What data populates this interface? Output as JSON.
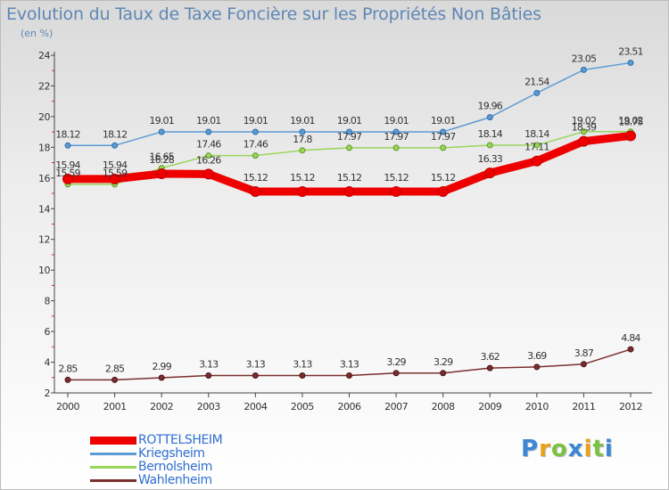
{
  "title": "Evolution du Taux de Taxe Foncière sur les Propriétés Non Bâties",
  "unit": "(en %)",
  "logo": {
    "text": "Proxiti",
    "letter_colors": [
      "#3a87d6",
      "#e8a21c",
      "#7cc242",
      "#3a87d6",
      "#e8a21c",
      "#7cc242",
      "#3a87d6"
    ]
  },
  "chart_data": {
    "type": "line",
    "title": "Evolution du Taux de Taxe Foncière sur les Propriétés Non Bâties",
    "xlabel": "",
    "ylabel": "(en %)",
    "categories": [
      "2000",
      "2001",
      "2002",
      "2003",
      "2004",
      "2005",
      "2006",
      "2007",
      "2008",
      "2009",
      "2010",
      "2011",
      "2012"
    ],
    "ylim": [
      2,
      24
    ],
    "yticks": [
      2,
      4,
      6,
      8,
      10,
      12,
      14,
      16,
      18,
      20,
      22,
      24
    ],
    "grid": false,
    "series": [
      {
        "name": "ROTTELSHEIM",
        "color": "#ee0000",
        "values": [
          15.94,
          15.94,
          16.28,
          16.26,
          15.12,
          15.12,
          15.12,
          15.12,
          15.12,
          16.33,
          17.11,
          18.39,
          18.75
        ],
        "labels": [
          "15.94",
          "15.94",
          "16.28",
          "16.26",
          "15.12",
          "15.12",
          "15.12",
          "15.12",
          "15.12",
          "16.33",
          "17.11",
          "18.39",
          "18.75"
        ]
      },
      {
        "name": "Kriegsheim",
        "color": "#5b9bd5",
        "values": [
          18.12,
          18.12,
          19.01,
          19.01,
          19.01,
          19.01,
          19.01,
          19.01,
          19.01,
          19.96,
          21.54,
          23.05,
          23.51
        ],
        "labels": [
          "18.12",
          "18.12",
          "19.01",
          "19.01",
          "19.01",
          "19.01",
          "19.01",
          "19.01",
          "19.01",
          "19.96",
          "21.54",
          "23.05",
          "23.51"
        ]
      },
      {
        "name": "Bernolsheim",
        "color": "#99d55a",
        "values": [
          15.59,
          15.59,
          16.65,
          17.46,
          17.46,
          17.8,
          17.97,
          17.97,
          17.97,
          18.14,
          18.14,
          19.02,
          19.02
        ],
        "labels": [
          "15.59",
          "15.59",
          "16.65",
          "17.46",
          "17.46",
          "17.8",
          "17.97",
          "17.97",
          "17.97",
          "18.14",
          "18.14",
          "19.02",
          "19.02"
        ]
      },
      {
        "name": "Wahlenheim",
        "color": "#7a2e2e",
        "values": [
          2.85,
          2.85,
          2.99,
          3.13,
          3.13,
          3.13,
          3.13,
          3.29,
          3.29,
          3.62,
          3.69,
          3.87,
          4.84
        ],
        "labels": [
          "2.85",
          "2.85",
          "2.99",
          "3.13",
          "3.13",
          "3.13",
          "3.13",
          "3.29",
          "3.29",
          "3.62",
          "3.69",
          "3.87",
          "4.84"
        ]
      }
    ]
  }
}
